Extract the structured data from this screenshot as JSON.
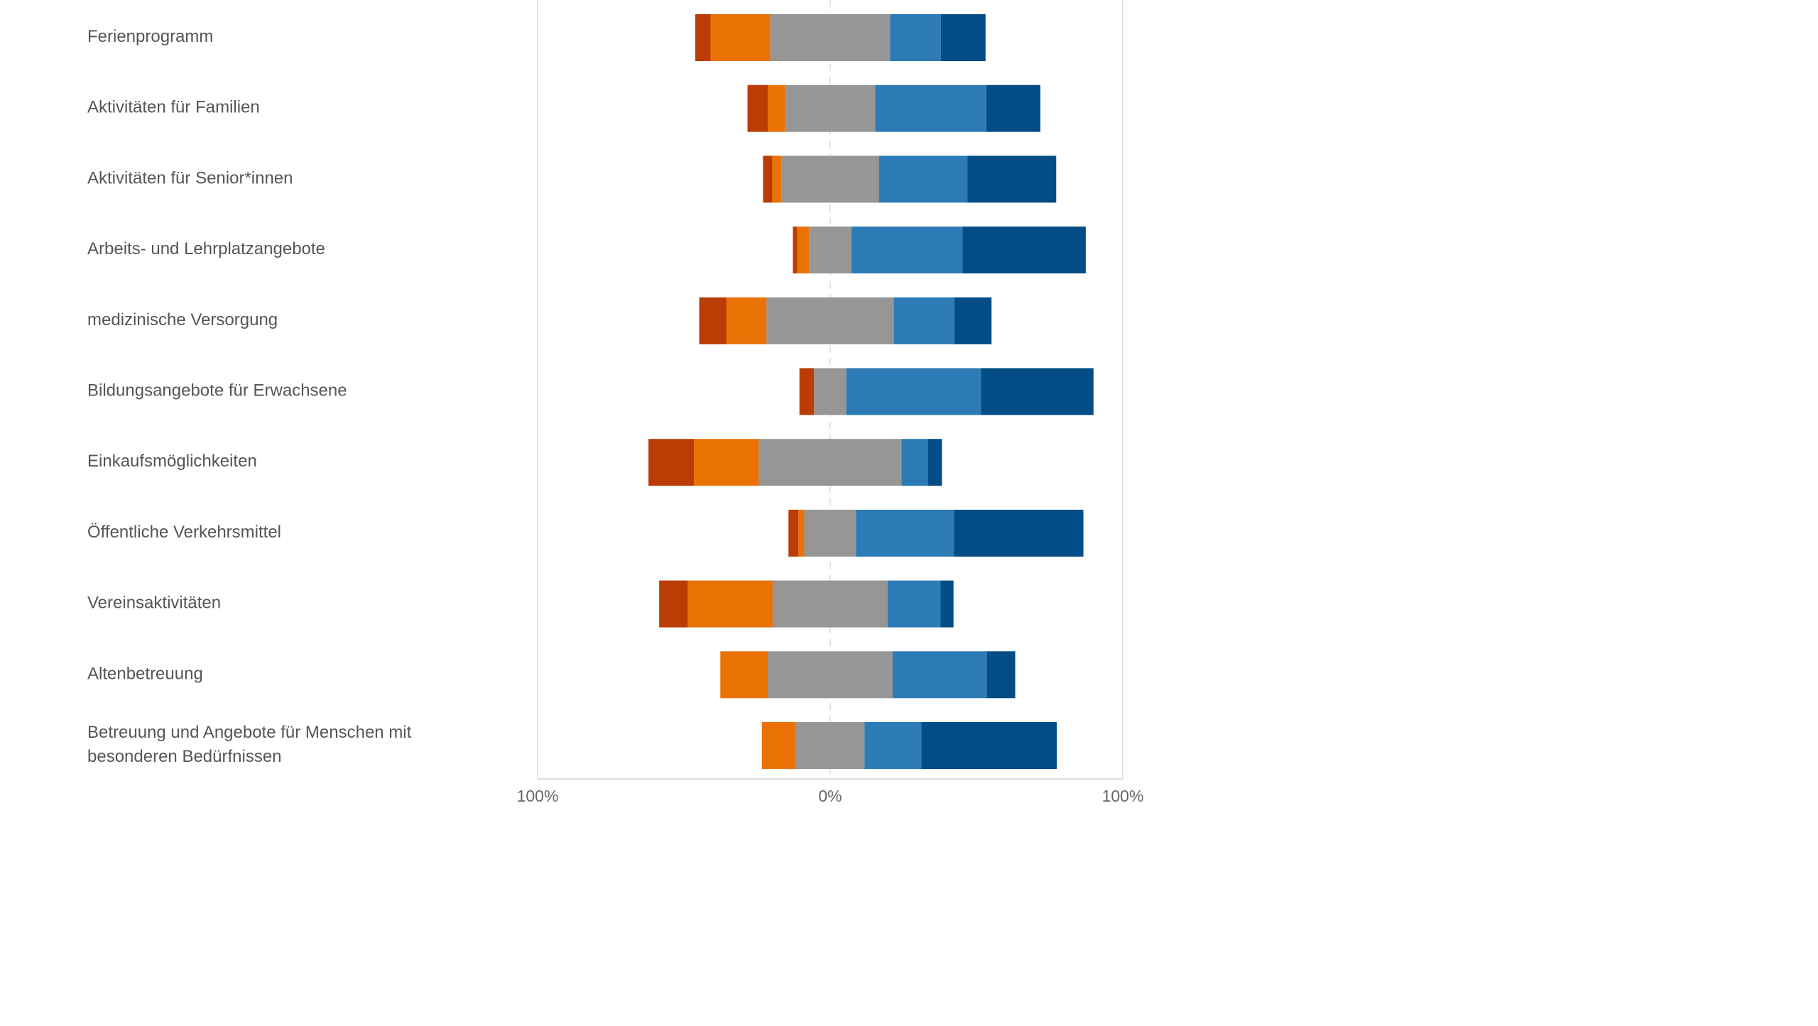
{
  "chart_data": {
    "type": "bar",
    "orientation": "horizontal",
    "stacking": "diverging",
    "xlim": [
      -100,
      100
    ],
    "x_tick_labels": [
      "100%",
      "0%",
      "100%"
    ],
    "grid": true,
    "legend": "none",
    "segment_colors": [
      "#bb3c05",
      "#ea7204",
      "#969696",
      "#2c7bb6",
      "#034c86"
    ],
    "categories": [
      [
        "Ferienprogramm"
      ],
      [
        "Aktivitäten für Familien"
      ],
      [
        "Aktivitäten für Senior*innen"
      ],
      [
        "Arbeits- und Lehrplatzangebote"
      ],
      [
        "medizinische Versorgung"
      ],
      [
        "Bildungsangebote für Erwachsene"
      ],
      [
        "Einkaufsmöglichkeiten"
      ],
      [
        "Öffentliche Verkehrsmittel"
      ],
      [
        "Vereinsaktivitäten"
      ],
      [
        "Altenbetreuung"
      ],
      [
        "Betreuung und Angebote für Menschen mit",
        "besonderen Bedürfnissen"
      ]
    ],
    "series": [
      {
        "values": [
          5.2,
          6.9,
          3.2,
          1.5,
          9.3,
          5.0,
          15.5,
          3.4,
          9.8,
          0.0,
          0.0
        ]
      },
      {
        "values": [
          20.4,
          6.0,
          3.1,
          4.0,
          13.7,
          0.0,
          22.2,
          2.0,
          29.0,
          16.2,
          11.6
        ]
      },
      {
        "values": [
          41.0,
          30.7,
          33.3,
          14.5,
          43.5,
          11.0,
          48.8,
          17.7,
          39.3,
          42.7,
          23.5
        ]
      },
      {
        "values": [
          17.3,
          38.0,
          30.3,
          38.0,
          20.7,
          46.0,
          9.0,
          33.5,
          18.1,
          32.2,
          19.4
        ]
      },
      {
        "values": [
          15.3,
          18.5,
          30.3,
          42.1,
          12.7,
          38.5,
          4.8,
          44.2,
          4.4,
          9.7,
          46.3
        ]
      }
    ]
  }
}
